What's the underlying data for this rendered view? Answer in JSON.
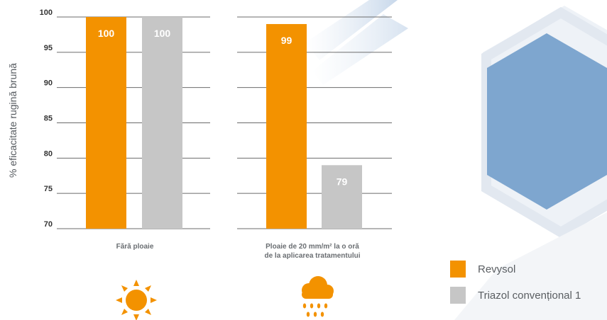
{
  "chart_data": {
    "type": "bar",
    "ylabel": "% eficacitate rugină brună",
    "ylim": [
      70,
      100
    ],
    "yticks": [
      70,
      75,
      80,
      85,
      90,
      95,
      100
    ],
    "categories": [
      "Fără ploaie",
      "Ploaie de 20 mm/m² la o oră de la aplicarea tratamentului"
    ],
    "category_lines": [
      [
        "Fără ploaie"
      ],
      [
        "Ploaie de 20 mm/m² la o oră",
        "de la aplicarea tratamentului"
      ]
    ],
    "series": [
      {
        "name": "Revysol",
        "color": "#f39200",
        "values": [
          100,
          99
        ]
      },
      {
        "name": "Triazol convențional 1",
        "color": "#c6c6c6",
        "values": [
          100,
          79
        ]
      }
    ],
    "data_labels": [
      [
        "100",
        "99"
      ],
      [
        "100",
        "79"
      ]
    ],
    "grid": true,
    "legend": "bottom-right"
  },
  "icons": [
    "sun-icon",
    "rain-cloud-icon"
  ],
  "colors": {
    "orange": "#f39200",
    "grey": "#c6c6c6",
    "hexagon_blue": "#7ea6cf",
    "text": "#333333"
  }
}
